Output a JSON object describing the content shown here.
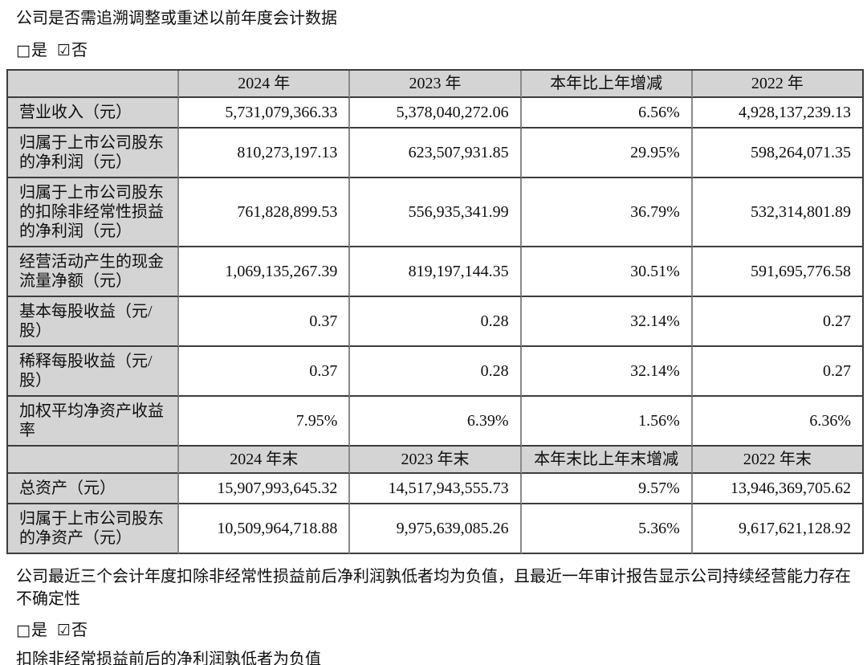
{
  "colors": {
    "cell_shade": "#d4d4d4",
    "border_dark": "#3c3c3c",
    "border_mid": "#8a8a8a"
  },
  "intro": {
    "question": "公司是否需追溯调整或重述以前年度会计数据",
    "yes_box": "□",
    "yes_label": "是",
    "no_box": "☑",
    "no_label": "否"
  },
  "table": {
    "header1": [
      "",
      "2024 年",
      "2023 年",
      "本年比上年增减",
      "2022 年"
    ],
    "rows1": [
      {
        "cells": [
          "营业收入（元）",
          "5,731,079,366.33",
          "5,378,040,272.06",
          "6.56%",
          "4,928,137,239.13"
        ]
      },
      {
        "cells": [
          "归属于上市公司股东的净利润（元）",
          "810,273,197.13",
          "623,507,931.85",
          "29.95%",
          "598,264,071.35"
        ]
      },
      {
        "cells": [
          "归属于上市公司股东的扣除非经常性损益的净利润（元）",
          "761,828,899.53",
          "556,935,341.99",
          "36.79%",
          "532,314,801.89"
        ]
      },
      {
        "cells": [
          "经营活动产生的现金流量净额（元）",
          "1,069,135,267.39",
          "819,197,144.35",
          "30.51%",
          "591,695,776.58"
        ]
      },
      {
        "cells": [
          "基本每股收益（元/股）",
          "0.37",
          "0.28",
          "32.14%",
          "0.27"
        ]
      },
      {
        "cells": [
          "稀释每股收益（元/股）",
          "0.37",
          "0.28",
          "32.14%",
          "0.27"
        ]
      },
      {
        "cells": [
          "加权平均净资产收益率",
          "7.95%",
          "6.39%",
          "1.56%",
          "6.36%"
        ]
      }
    ],
    "header2": [
      "",
      "2024 年末",
      "2023 年末",
      "本年末比上年末增减",
      "2022 年末"
    ],
    "rows2": [
      {
        "cells": [
          "总资产（元）",
          "15,907,993,645.32",
          "14,517,943,555.73",
          "9.57%",
          "13,946,369,705.62"
        ]
      },
      {
        "cells": [
          "归属于上市公司股东的净资产（元）",
          "10,509,964,718.88",
          "9,975,639,085.26",
          "5.36%",
          "9,617,621,128.92"
        ]
      }
    ]
  },
  "footer": {
    "note": "公司最近三个会计年度扣除非经常性损益前后净利润孰低者均为负值，且最近一年审计报告显示公司持续经营能力存在不确定性",
    "yes_box": "□",
    "yes_label": "是",
    "no_box": "☑",
    "no_label": "否",
    "negative_note": "扣除非经常损益前后的净利润孰低者为负值"
  }
}
